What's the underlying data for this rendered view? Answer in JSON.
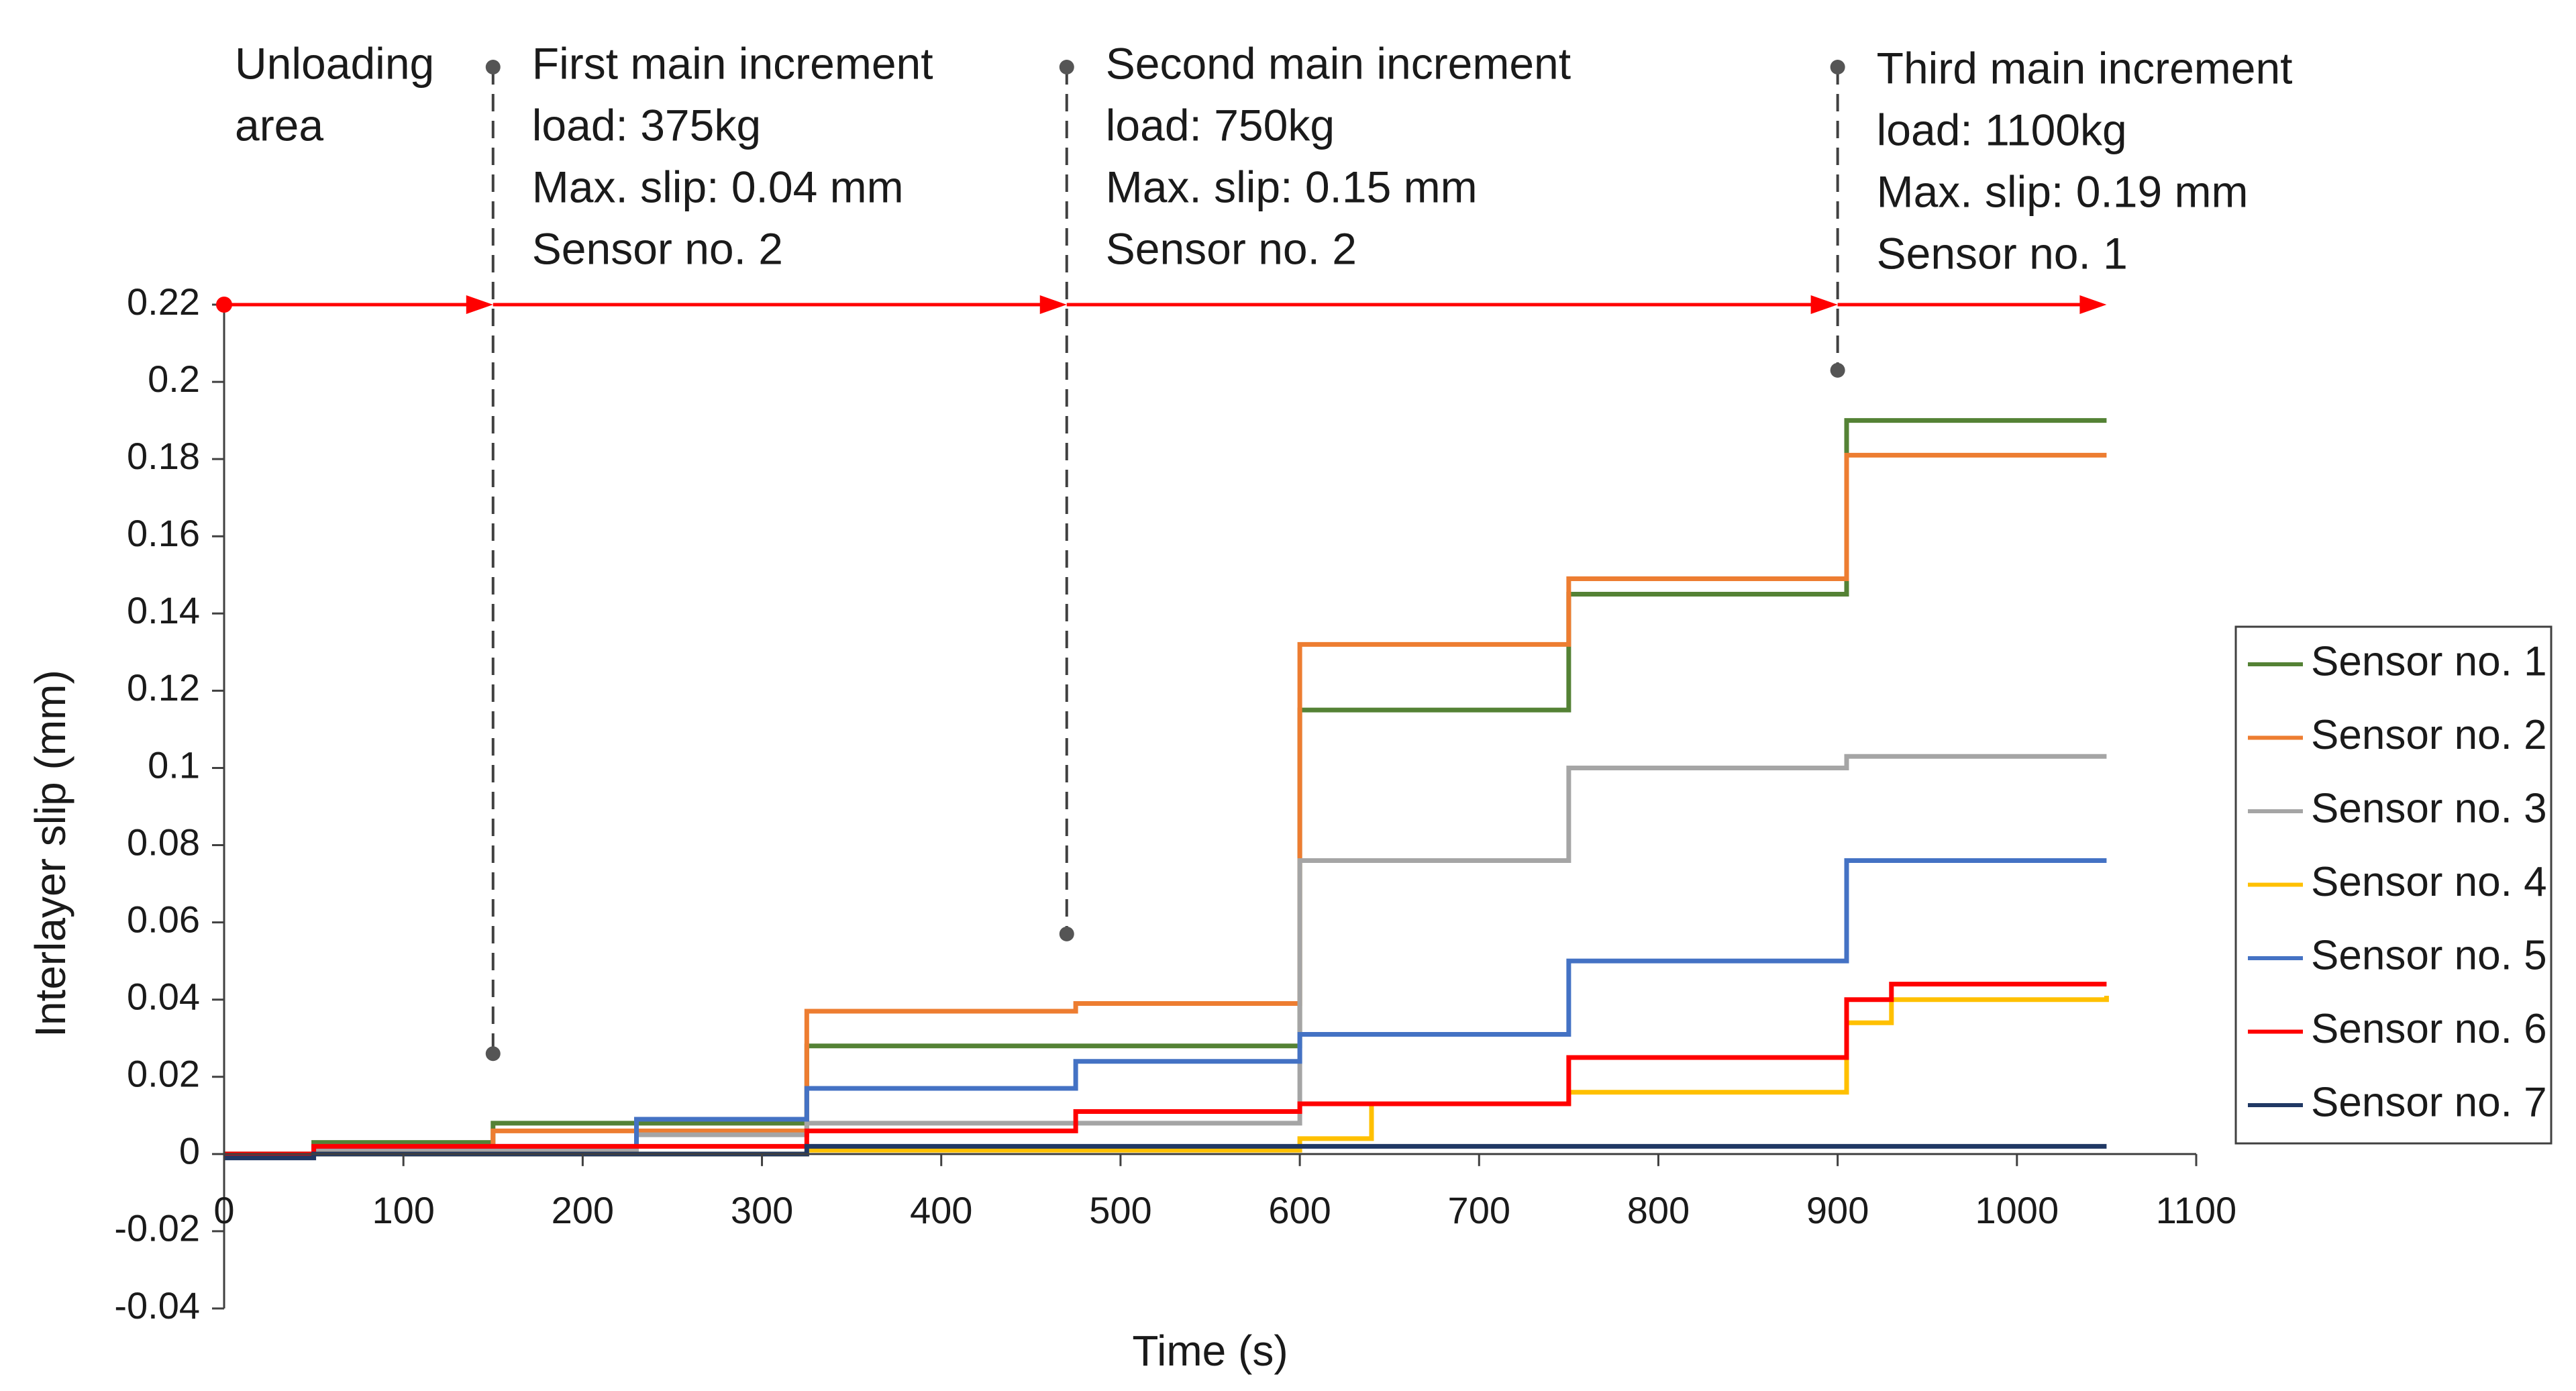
{
  "chart_data": {
    "type": "line",
    "title": "",
    "xlabel": "Time (s)",
    "ylabel": "Interlayer slip (mm)",
    "xlim": [
      0,
      1100
    ],
    "ylim": [
      -0.04,
      0.22
    ],
    "x_ticks": [
      0,
      100,
      200,
      300,
      400,
      500,
      600,
      700,
      800,
      900,
      1000,
      1100
    ],
    "y_ticks": [
      -0.04,
      -0.02,
      0,
      0.02,
      0.04,
      0.06,
      0.08,
      0.1,
      0.12,
      0.14,
      0.16,
      0.18,
      0.2,
      0.22
    ],
    "x_tick_labels": [
      "0",
      "100",
      "200",
      "300",
      "400",
      "500",
      "600",
      "700",
      "800",
      "900",
      "1000",
      "1100"
    ],
    "y_tick_labels": [
      "-0.04",
      "-0.02",
      "0",
      "0.02",
      "0.04",
      "0.06",
      "0.08",
      "0.1",
      "0.12",
      "0.14",
      "0.16",
      "0.18",
      "0.2",
      "0.22"
    ],
    "grid": false,
    "legend_position": "right",
    "series": [
      {
        "name": "Sensor no. 1",
        "color": "#548235",
        "x": [
          0,
          50,
          150,
          325,
          600,
          750,
          905,
          1050
        ],
        "y": [
          0,
          0.003,
          0.008,
          0.028,
          0.115,
          0.145,
          0.19,
          0.19
        ]
      },
      {
        "name": "Sensor no. 2",
        "color": "#ED7D31",
        "x": [
          0,
          50,
          150,
          325,
          475,
          600,
          750,
          905,
          1050
        ],
        "y": [
          0,
          0.002,
          0.006,
          0.037,
          0.039,
          0.132,
          0.149,
          0.181,
          0.181
        ]
      },
      {
        "name": "Sensor no. 3",
        "color": "#A5A5A5",
        "x": [
          0,
          50,
          230,
          325,
          600,
          750,
          905,
          1050
        ],
        "y": [
          0,
          0.001,
          0.005,
          0.008,
          0.076,
          0.1,
          0.103,
          0.103
        ]
      },
      {
        "name": "Sensor no. 4",
        "color": "#FFC000",
        "x": [
          0,
          325,
          600,
          640,
          750,
          905,
          930,
          1050
        ],
        "y": [
          0,
          0.001,
          0.004,
          0.013,
          0.016,
          0.034,
          0.04,
          0.041
        ]
      },
      {
        "name": "Sensor no. 5",
        "color": "#4472C4",
        "x": [
          0,
          50,
          230,
          325,
          475,
          600,
          750,
          905,
          1050
        ],
        "y": [
          0,
          0.002,
          0.009,
          0.017,
          0.024,
          0.031,
          0.05,
          0.076,
          0.076
        ]
      },
      {
        "name": "Sensor no. 6",
        "color": "#FF0000",
        "x": [
          0,
          50,
          325,
          475,
          600,
          750,
          905,
          930,
          1050
        ],
        "y": [
          0,
          0.002,
          0.006,
          0.011,
          0.013,
          0.025,
          0.04,
          0.044,
          0.044
        ]
      },
      {
        "name": "Sensor no. 7",
        "color": "#203864",
        "x": [
          0,
          50,
          325,
          1050
        ],
        "y": [
          -0.001,
          0,
          0.002,
          0.002
        ]
      }
    ],
    "legend": [
      "Sensor no. 1",
      "Sensor no. 2",
      "Sensor no. 3",
      "Sensor no. 4",
      "Sensor no. 5",
      "Sensor no. 6",
      "Sensor no. 7"
    ],
    "arrow": {
      "color": "#FF0000",
      "y": 0.22,
      "start_x": 0,
      "stops_x": [
        150,
        470,
        900,
        1050
      ]
    },
    "markers": [
      {
        "x": 150,
        "y_top": 0.22,
        "y_bottom": 0.026
      },
      {
        "x": 470,
        "y_top": 0.22,
        "y_bottom": 0.057
      },
      {
        "x": 900,
        "y_top": 0.22,
        "y_bottom": 0.203
      }
    ],
    "annotations": [
      {
        "x": 0,
        "lines": [
          "Unloading",
          "area"
        ]
      },
      {
        "x": 150,
        "lines": [
          "First main increment",
          "load: 375kg",
          "Max. slip: 0.04 mm",
          "Sensor no. 2"
        ]
      },
      {
        "x": 470,
        "lines": [
          "Second main increment",
          "load: 750kg",
          "Max. slip: 0.15 mm",
          "Sensor no. 2"
        ]
      },
      {
        "x": 900,
        "lines": [
          "Third main increment",
          "load: 1100kg",
          "Max. slip: 0.19 mm",
          "Sensor no. 1"
        ]
      }
    ]
  }
}
